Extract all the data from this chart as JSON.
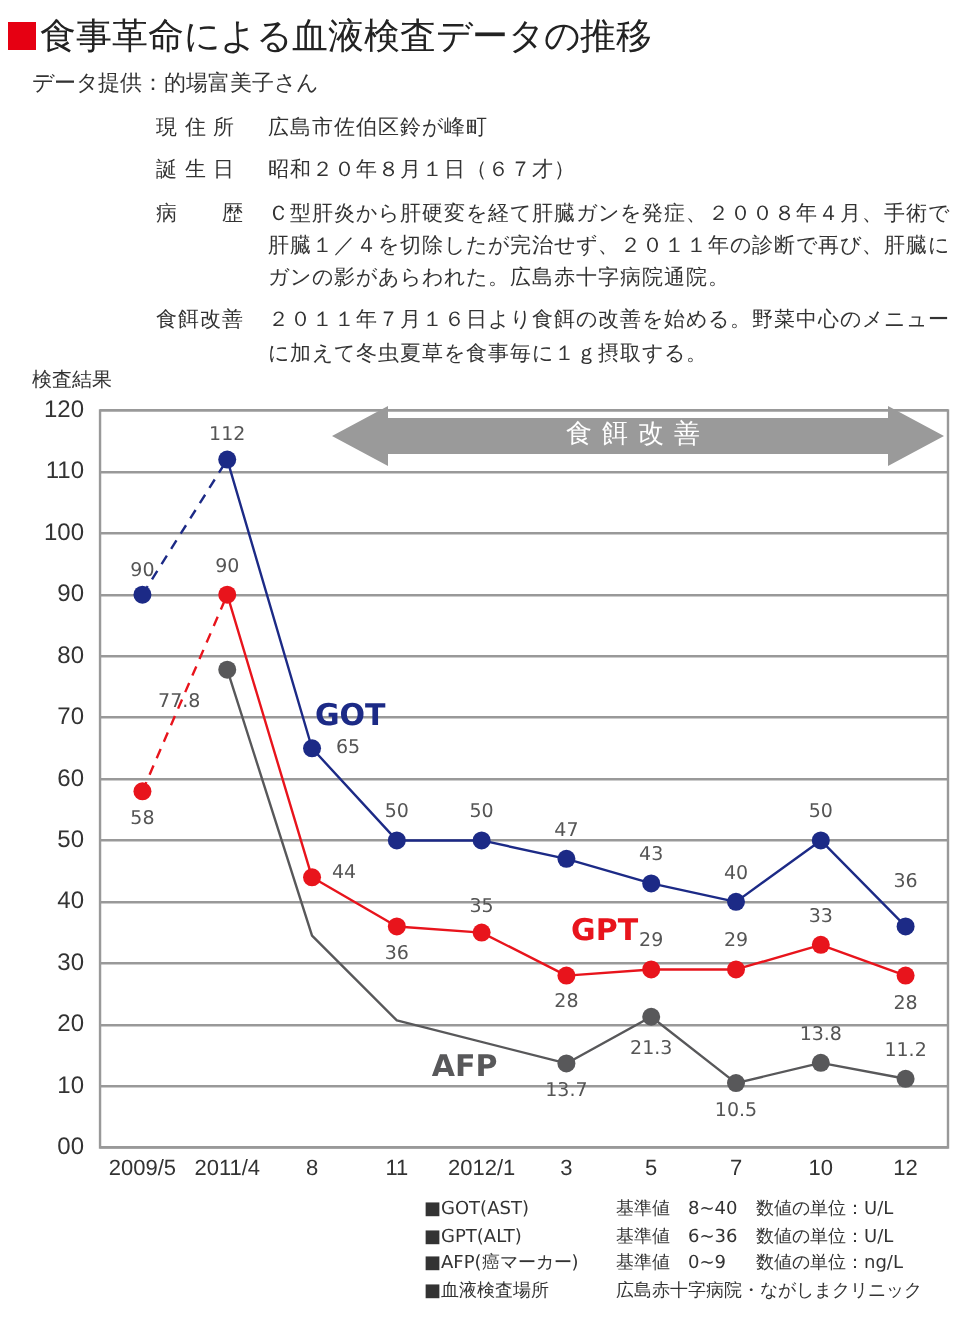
{
  "chart_data": {
    "type": "line",
    "title": "食事革命による血液検査データの推移",
    "subtitle": "データ提供：的場富美子さん",
    "ylabel": "検査結果",
    "categories": [
      "2009/5",
      "2011/4",
      "8",
      "11",
      "2012/1",
      "3",
      "5",
      "7",
      "10",
      "12"
    ],
    "ylim": [
      0,
      120
    ],
    "yticks": [
      {
        "value": 0,
        "label": "00"
      },
      10,
      20,
      30,
      40,
      50,
      60,
      70,
      80,
      90,
      100,
      110,
      120
    ],
    "grid": "y",
    "legend": false,
    "marker": "circle",
    "series": [
      {
        "color": "#1c2a86",
        "line_style": "dashed",
        "values": [
          90,
          112,
          null,
          null,
          null,
          null,
          null,
          null,
          null,
          null
        ],
        "value_labels": [
          "90",
          "112",
          null,
          null,
          null,
          null,
          null,
          null,
          null,
          null
        ]
      },
      {
        "name": "GOT",
        "color": "#1c2a86",
        "line_style": "solid",
        "values": [
          null,
          112,
          65,
          50,
          50,
          47,
          43,
          40,
          50,
          36
        ],
        "value_labels": [
          null,
          null,
          "65",
          "50",
          "50",
          "47",
          "43",
          "40",
          "50",
          "36"
        ]
      },
      {
        "color": "#e8141c",
        "line_style": "dashed",
        "values": [
          58,
          90,
          null,
          null,
          null,
          null,
          null,
          null,
          null,
          null
        ],
        "value_labels": [
          "58",
          "90",
          null,
          null,
          null,
          null,
          null,
          null,
          null,
          null
        ]
      },
      {
        "name": "GPT",
        "color": "#e8141c",
        "line_style": "solid",
        "values": [
          null,
          90,
          44,
          36,
          35,
          28,
          29,
          29,
          33,
          28
        ],
        "value_labels": [
          null,
          null,
          "44",
          "36",
          "35",
          "28",
          "29",
          "29",
          "33",
          "28"
        ]
      },
      {
        "name": "AFP",
        "color": "#58585a",
        "line_style": "solid",
        "values": [
          null,
          77.8,
          34.5,
          20.7,
          null,
          13.7,
          21.3,
          10.5,
          13.8,
          11.2
        ],
        "value_labels": [
          null,
          "77.8",
          null,
          null,
          null,
          "13.7",
          "21.3",
          "10.5",
          "13.8",
          "11.2"
        ]
      }
    ],
    "annotations": [
      "現 住 所",
      "広島市佐伯区鈴が峰町",
      "誕 生 日",
      "昭和２０年８月１日（６７才）",
      "病　　歴",
      "Ｃ型肝炎から肝硬変を経て肝臓ガンを発症、２００８年４月、手術で肝臓１／４を切除したが完治せず、２０１１年の診断で再び、肝臓にガンの影があらわれた。広島赤十字病院通院。",
      "食餌改善",
      "２０１１年７月１６日より食餌の改善を始める。野菜中心のメニューに加えて冬虫夏草を食事毎に１ｇ摂取する。",
      "食餌改善",
      "■GOT(AST)",
      "基準値　8~40",
      "数値の単位：U/L",
      "■GPT(ALT)",
      "基準値　6~36",
      "数値の単位：U/L",
      "■AFP(癌マーカー)",
      "基準値　0~9",
      "数値の単位：ng/L",
      "■血液検査場所",
      "広島赤十字病院・ながしまクリニック"
    ]
  }
}
